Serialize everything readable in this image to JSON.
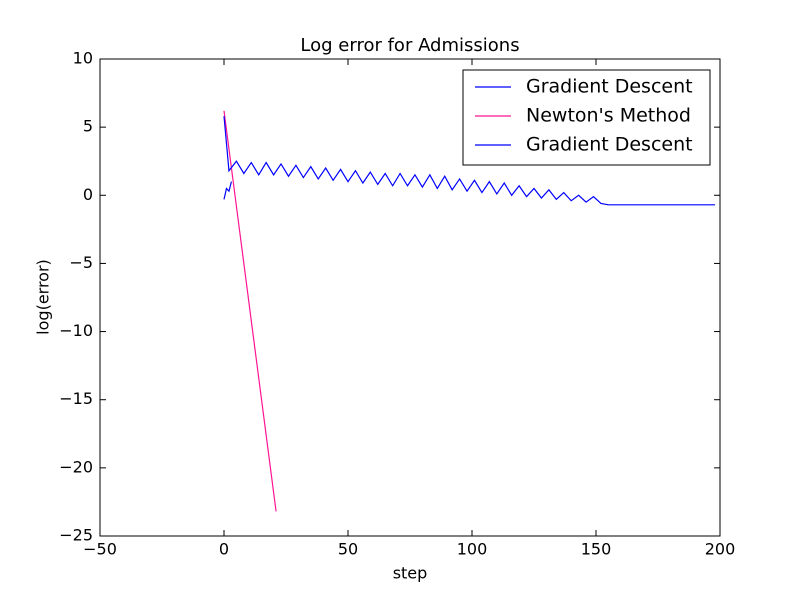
{
  "chart_data": {
    "type": "line",
    "title": "Log error for Admissions",
    "xlabel": "step",
    "ylabel": "log(error)",
    "xlim": [
      -50,
      200
    ],
    "ylim": [
      -25,
      10
    ],
    "xticks": [
      {
        "value": -50,
        "label": "−50"
      },
      0,
      50,
      100,
      150,
      200
    ],
    "yticks": [
      10,
      5,
      0,
      {
        "value": -5,
        "label": "−5"
      },
      {
        "value": -10,
        "label": "−10"
      },
      {
        "value": -15,
        "label": "−15"
      },
      {
        "value": -20,
        "label": "−20"
      },
      {
        "value": -25,
        "label": "−25"
      }
    ],
    "legend": "upper right",
    "series": [
      {
        "name": "Gradient Descent",
        "color": "#0000ff",
        "x": [
          0,
          1,
          2,
          3
        ],
        "values": [
          -0.3,
          0.5,
          0.3,
          1.0
        ]
      },
      {
        "name": "Newton's Method",
        "color": "#ff1493",
        "x": [
          0,
          1,
          2,
          3,
          4,
          5,
          6,
          7,
          8,
          9,
          10,
          11,
          12,
          13,
          14,
          15,
          16,
          17,
          18,
          19,
          20,
          21
        ],
        "values": [
          6.2,
          4.8,
          3.4,
          2.0,
          0.6,
          -0.8,
          -2.2,
          -3.6,
          -5.0,
          -6.4,
          -7.8,
          -9.2,
          -10.6,
          -12.0,
          -13.4,
          -14.8,
          -16.2,
          -17.6,
          -19.0,
          -20.4,
          -21.8,
          -23.2
        ]
      },
      {
        "name": "Gradient Descent",
        "color": "#0000ff",
        "x": [
          0,
          2,
          5,
          8,
          11,
          14,
          17,
          20,
          23,
          26,
          29,
          32,
          35,
          38,
          41,
          44,
          47,
          50,
          53,
          56,
          59,
          62,
          65,
          68,
          71,
          74,
          77,
          80,
          83,
          86,
          89,
          92,
          95,
          98,
          101,
          104,
          107,
          110,
          113,
          116,
          119,
          122,
          125,
          128,
          131,
          134,
          137,
          140,
          143,
          146,
          149,
          152,
          155,
          198
        ],
        "values": [
          5.8,
          1.8,
          2.5,
          1.6,
          2.4,
          1.5,
          2.4,
          1.5,
          2.3,
          1.4,
          2.2,
          1.3,
          2.1,
          1.2,
          2.0,
          1.1,
          1.9,
          1.0,
          1.8,
          0.9,
          1.7,
          0.8,
          1.6,
          0.7,
          1.6,
          0.7,
          1.5,
          0.6,
          1.5,
          0.5,
          1.4,
          0.4,
          1.2,
          0.3,
          1.1,
          0.2,
          1.0,
          0.1,
          0.9,
          0.0,
          0.7,
          -0.1,
          0.5,
          -0.2,
          0.4,
          -0.3,
          0.2,
          -0.4,
          0.0,
          -0.5,
          -0.1,
          -0.6,
          -0.7,
          -0.7
        ]
      }
    ]
  }
}
